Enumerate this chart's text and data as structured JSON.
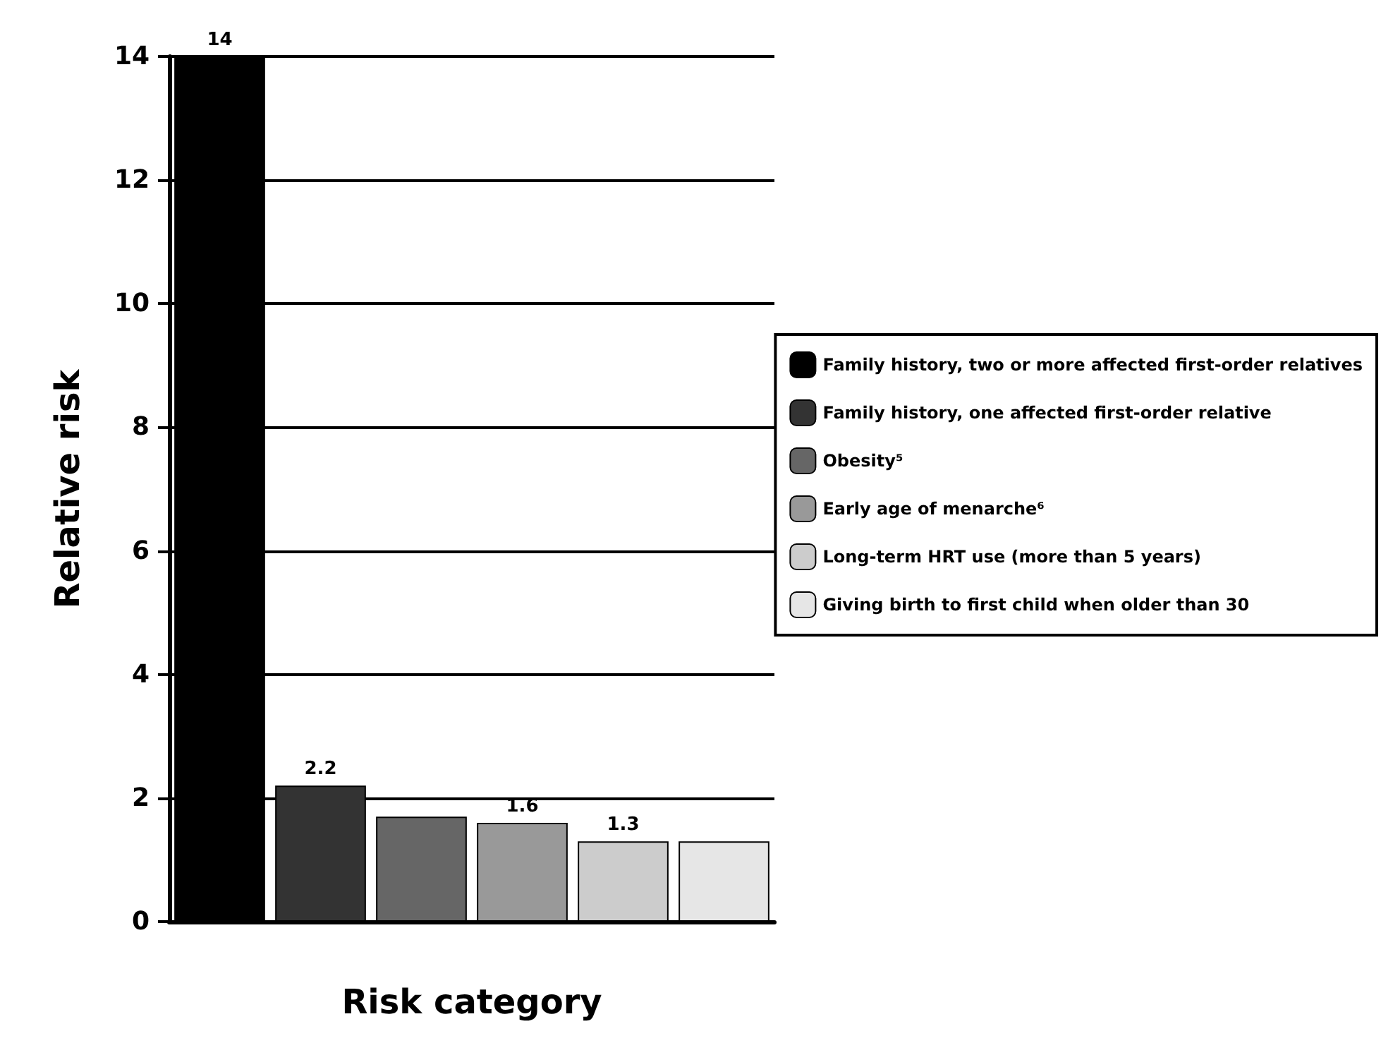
{
  "chart_data": {
    "type": "bar",
    "xlabel": "Risk category",
    "ylabel": "Relative risk",
    "categories": [
      null,
      null,
      null,
      null,
      null,
      null
    ],
    "stacked": true,
    "series": [
      {
        "name": "Family history, two or more affected first-order relatives",
        "color": "#000000",
        "values": [
          14,
          null,
          null,
          null,
          null,
          null
        ],
        "value_labels": [
          "14",
          null,
          null,
          null,
          null,
          null
        ]
      },
      {
        "name": "Family history, one affected first-order relative",
        "color": "#333333",
        "values": [
          null,
          2.2,
          null,
          null,
          null,
          null
        ],
        "value_labels": [
          null,
          "2.2",
          null,
          null,
          null,
          null
        ]
      },
      {
        "name": "Obesity⁵",
        "color": "#666666",
        "values": [
          null,
          null,
          1.7,
          null,
          null,
          null
        ]
      },
      {
        "name": "Early age of menarche⁶",
        "color": "#999999",
        "values": [
          null,
          null,
          null,
          1.6,
          null,
          null
        ],
        "value_labels": [
          null,
          null,
          null,
          "1.6",
          null,
          null
        ]
      },
      {
        "name": "Long-term HRT use (more than 5 years)",
        "color": "#cccccc",
        "values": [
          null,
          null,
          null,
          null,
          1.3,
          null
        ],
        "value_labels": [
          null,
          null,
          null,
          null,
          "1.3",
          null
        ]
      },
      {
        "name": "Giving birth to first child when older than 30",
        "color": "#e6e6e6",
        "values": [
          null,
          null,
          null,
          null,
          null,
          1.3
        ]
      }
    ],
    "ylim": [
      0,
      14
    ],
    "yticks": [
      0,
      2,
      4,
      6,
      8,
      10,
      12,
      14
    ],
    "grid": "y",
    "legend": "right",
    "tick_labels": "y"
  }
}
